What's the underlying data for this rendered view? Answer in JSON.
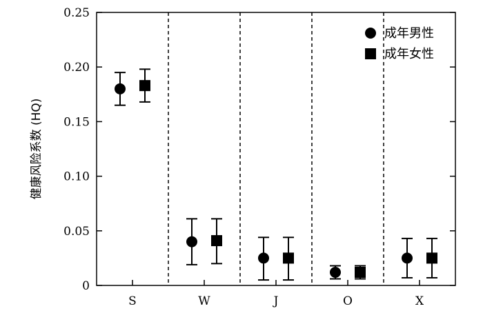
{
  "chart_data": {
    "type": "scatter",
    "title": "",
    "xlabel": "",
    "ylabel": "健康风险系数 (HQ)",
    "categories": [
      "S",
      "W",
      "J",
      "O",
      "X"
    ],
    "ylim": [
      0,
      0.25
    ],
    "yticks": [
      "0",
      "0.05",
      "0.10",
      "0.15",
      "0.20",
      "0.25"
    ],
    "grid": false,
    "legend_position": "top-right",
    "category_separators": "dashed",
    "series": [
      {
        "name": "成年男性",
        "marker": "circle",
        "color": "#000000",
        "values": [
          0.18,
          0.04,
          0.025,
          0.012,
          0.025
        ],
        "error_low": [
          0.165,
          0.019,
          0.005,
          0.006,
          0.007
        ],
        "error_high": [
          0.195,
          0.061,
          0.044,
          0.018,
          0.043
        ]
      },
      {
        "name": "成年女性",
        "marker": "square",
        "color": "#000000",
        "values": [
          0.183,
          0.041,
          0.025,
          0.012,
          0.025
        ],
        "error_low": [
          0.168,
          0.02,
          0.005,
          0.006,
          0.007
        ],
        "error_high": [
          0.198,
          0.061,
          0.044,
          0.018,
          0.043
        ]
      }
    ]
  }
}
